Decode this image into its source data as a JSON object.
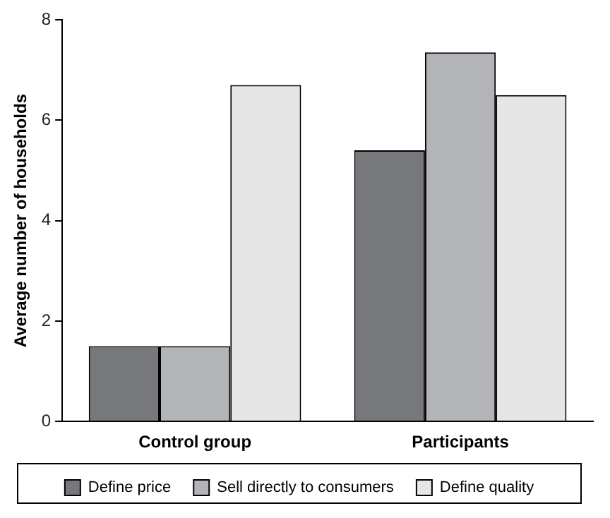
{
  "chart_data": {
    "type": "bar",
    "ylabel": "Average number of households",
    "categories": [
      "Control group",
      "Participants"
    ],
    "series": [
      {
        "name": "Define price",
        "color": "#77787c",
        "values": [
          1.5,
          5.4
        ]
      },
      {
        "name": "Sell directly to consumers",
        "color": "#b3b4b8",
        "values": [
          1.5,
          7.35
        ]
      },
      {
        "name": "Define quality",
        "color": "#e6e6e6",
        "values": [
          6.7,
          6.5
        ]
      }
    ],
    "ylim": [
      0,
      8
    ],
    "yticks": [
      0,
      2,
      4,
      6,
      8
    ],
    "grid": false,
    "legend": "bottom"
  }
}
